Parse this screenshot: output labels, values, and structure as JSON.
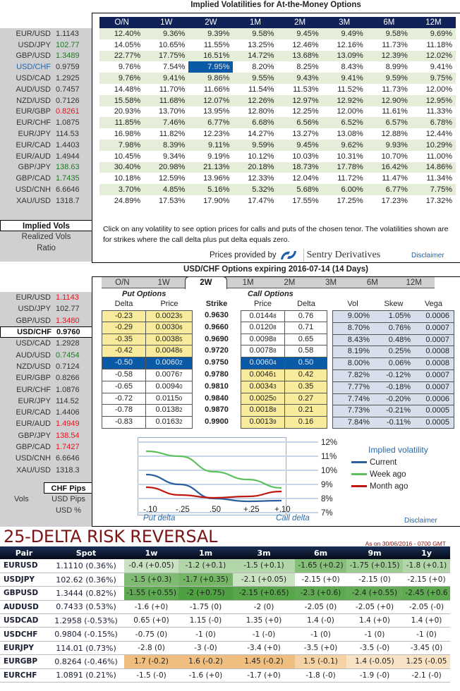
{
  "implied_vols": {
    "title": "Implied Volatilities for At-the-Money Options",
    "tenors": [
      "O/N",
      "1W",
      "2W",
      "1M",
      "2M",
      "3M",
      "6M",
      "12M"
    ],
    "pairs": [
      {
        "pair": "EUR/USD",
        "spot": "1.1143",
        "color": "",
        "vols": [
          "12.40%",
          "9.36%",
          "9.39%",
          "9.58%",
          "9.45%",
          "9.49%",
          "9.58%",
          "9.69%"
        ]
      },
      {
        "pair": "USD/JPY",
        "spot": "102.77",
        "color": "green",
        "vols": [
          "14.05%",
          "10.65%",
          "11.55%",
          "13.25%",
          "12.46%",
          "12.16%",
          "11.73%",
          "11.18%"
        ]
      },
      {
        "pair": "GBP/USD",
        "spot": "1.3489",
        "color": "green",
        "vols": [
          "22.77%",
          "17.75%",
          "16.51%",
          "14.72%",
          "13.68%",
          "13.09%",
          "12.39%",
          "12.02%"
        ]
      },
      {
        "pair": "USD/CHF",
        "spot": "0.9759",
        "color": "",
        "selected": true,
        "vols": [
          "9.76%",
          "7.54%",
          "7.95%",
          "8.20%",
          "8.25%",
          "8.43%",
          "8.99%",
          "9.41%"
        ]
      },
      {
        "pair": "USD/CAD",
        "spot": "1.2925",
        "color": "",
        "vols": [
          "9.76%",
          "9.41%",
          "9.86%",
          "9.55%",
          "9.43%",
          "9.41%",
          "9.59%",
          "9.75%"
        ]
      },
      {
        "pair": "AUD/USD",
        "spot": "0.7457",
        "color": "",
        "vols": [
          "14.48%",
          "11.70%",
          "11.66%",
          "11.54%",
          "11.53%",
          "11.52%",
          "11.73%",
          "12.00%"
        ]
      },
      {
        "pair": "NZD/USD",
        "spot": "0.7126",
        "color": "",
        "vols": [
          "15.58%",
          "11.68%",
          "12.07%",
          "12.26%",
          "12.97%",
          "12.92%",
          "12.90%",
          "12.95%"
        ]
      },
      {
        "pair": "EUR/GBP",
        "spot": "0.8261",
        "color": "red",
        "vols": [
          "20.93%",
          "13.70%",
          "13.95%",
          "12.80%",
          "12.25%",
          "12.00%",
          "11.61%",
          "11.33%"
        ]
      },
      {
        "pair": "EUR/CHF",
        "spot": "1.0875",
        "color": "",
        "vols": [
          "11.85%",
          "7.46%",
          "6.77%",
          "6.68%",
          "6.56%",
          "6.52%",
          "6.57%",
          "6.78%"
        ]
      },
      {
        "pair": "EUR/JPY",
        "spot": "114.53",
        "color": "",
        "vols": [
          "16.98%",
          "11.82%",
          "12.23%",
          "14.27%",
          "13.27%",
          "13.08%",
          "12.88%",
          "12.44%"
        ]
      },
      {
        "pair": "EUR/CAD",
        "spot": "1.4403",
        "color": "",
        "vols": [
          "7.98%",
          "8.39%",
          "9.11%",
          "9.59%",
          "9.45%",
          "9.62%",
          "9.93%",
          "10.29%"
        ]
      },
      {
        "pair": "EUR/AUD",
        "spot": "1.4944",
        "color": "",
        "vols": [
          "10.45%",
          "9.34%",
          "9.19%",
          "10.12%",
          "10.03%",
          "10.31%",
          "10.70%",
          "11.00%"
        ]
      },
      {
        "pair": "GBP/JPY",
        "spot": "138.63",
        "color": "green",
        "vols": [
          "30.40%",
          "20.98%",
          "21.13%",
          "20.18%",
          "18.73%",
          "17.78%",
          "16.42%",
          "14.86%"
        ]
      },
      {
        "pair": "GBP/CAD",
        "spot": "1.7435",
        "color": "green",
        "vols": [
          "10.18%",
          "12.59%",
          "13.96%",
          "12.33%",
          "12.04%",
          "11.72%",
          "11.47%",
          "11.34%"
        ]
      },
      {
        "pair": "USD/CNH",
        "spot": "6.6646",
        "color": "",
        "vols": [
          "3.70%",
          "4.85%",
          "5.16%",
          "5.32%",
          "5.68%",
          "6.00%",
          "6.77%",
          "7.75%"
        ]
      },
      {
        "pair": "XAU/USD",
        "spot": "1318.7",
        "color": "",
        "vols": [
          "24.89%",
          "17.53%",
          "17.90%",
          "17.47%",
          "17.55%",
          "17.25%",
          "17.23%",
          "17.32%"
        ]
      }
    ],
    "selected_cell": {
      "pair": "USD/CHF",
      "tenor": "2W"
    },
    "modes": [
      "Implied Vols",
      "Realized Vols",
      "Ratio"
    ],
    "active_mode": "Implied Vols",
    "note": "Click on any volatility to see option prices for calls and puts of the chosen tenor. The volatilities shown are for strikes where the call delta plus put delta equals zero.",
    "prices_by": "Prices provided by",
    "provider": "Sentry Derivatives",
    "disclaimer": "Disclaimer"
  },
  "options": {
    "title": "USD/CHF Options expiring 2016-07-14 (14 Days)",
    "tabs": [
      "O/N",
      "1W",
      "2W",
      "1M",
      "2M",
      "3M",
      "6M",
      "12M"
    ],
    "active_tab": "2W",
    "put_header": "Put Options",
    "call_header": "Call Options",
    "columns": {
      "put_delta": "Delta",
      "put_price": "Price",
      "strike": "Strike",
      "call_price": "Price",
      "call_delta": "Delta",
      "vol": "Vol",
      "skew": "Skew",
      "vega": "Vega"
    },
    "rows": [
      {
        "put_delta": "-0.23",
        "put_price": "0.0023",
        "put_price_sub": "5",
        "strike": "0.9630",
        "call_price": "0.0144",
        "call_price_sub": "8",
        "call_delta": "0.76",
        "vol": "9.00%",
        "skew": "1.05%",
        "vega": "0.0006"
      },
      {
        "put_delta": "-0.29",
        "put_price": "0.0030",
        "put_price_sub": "6",
        "strike": "0.9660",
        "call_price": "0.0120",
        "call_price_sub": "8",
        "call_delta": "0.71",
        "vol": "8.70%",
        "skew": "0.76%",
        "vega": "0.0007"
      },
      {
        "put_delta": "-0.35",
        "put_price": "0.0038",
        "put_price_sub": "5",
        "strike": "0.9690",
        "call_price": "0.0098",
        "call_price_sub": "8",
        "call_delta": "0.65",
        "vol": "8.43%",
        "skew": "0.48%",
        "vega": "0.0007"
      },
      {
        "put_delta": "-0.42",
        "put_price": "0.0048",
        "put_price_sub": "6",
        "strike": "0.9720",
        "call_price": "0.0078",
        "call_price_sub": "8",
        "call_delta": "0.58",
        "vol": "8.19%",
        "skew": "0.25%",
        "vega": "0.0008"
      },
      {
        "put_delta": "-0.50",
        "put_price": "0.0060",
        "put_price_sub": "2",
        "strike": "0.9750",
        "call_price": "0.0060",
        "call_price_sub": "4",
        "call_delta": "0.50",
        "vol": "8.00%",
        "skew": "0.06%",
        "vega": "0.0008"
      },
      {
        "put_delta": "-0.58",
        "put_price": "0.0076",
        "put_price_sub": "7",
        "strike": "0.9780",
        "call_price": "0.0046",
        "call_price_sub": "1",
        "call_delta": "0.42",
        "vol": "7.82%",
        "skew": "-0.12%",
        "vega": "0.0007"
      },
      {
        "put_delta": "-0.65",
        "put_price": "0.0094",
        "put_price_sub": "0",
        "strike": "0.9810",
        "call_price": "0.0034",
        "call_price_sub": "3",
        "call_delta": "0.35",
        "vol": "7.77%",
        "skew": "-0.18%",
        "vega": "0.0007"
      },
      {
        "put_delta": "-0.72",
        "put_price": "0.0115",
        "put_price_sub": "0",
        "strike": "0.9840",
        "call_price": "0.0025",
        "call_price_sub": "0",
        "call_delta": "0.27",
        "vol": "7.74%",
        "skew": "-0.20%",
        "vega": "0.0006"
      },
      {
        "put_delta": "-0.78",
        "put_price": "0.0138",
        "put_price_sub": "2",
        "strike": "0.9870",
        "call_price": "0.0018",
        "call_price_sub": "8",
        "call_delta": "0.21",
        "vol": "7.73%",
        "skew": "-0.21%",
        "vega": "0.0005"
      },
      {
        "put_delta": "-0.83",
        "put_price": "0.0163",
        "put_price_sub": "2",
        "strike": "0.9900",
        "call_price": "0.0013",
        "call_price_sub": "9",
        "call_delta": "0.16",
        "vol": "7.84%",
        "skew": "-0.11%",
        "vega": "0.0005"
      }
    ],
    "pairs": [
      {
        "pair": "EUR/USD",
        "spot": "1.1143",
        "color": "red"
      },
      {
        "pair": "USD/JPY",
        "spot": "102.77",
        "color": ""
      },
      {
        "pair": "GBP/USD",
        "spot": "1.3480",
        "color": "red"
      },
      {
        "pair": "USD/CHF",
        "spot": "0.9760",
        "color": "",
        "active": true
      },
      {
        "pair": "USD/CAD",
        "spot": "1.2928",
        "color": ""
      },
      {
        "pair": "AUD/USD",
        "spot": "0.7454",
        "color": "green"
      },
      {
        "pair": "NZD/USD",
        "spot": "0.7124",
        "color": ""
      },
      {
        "pair": "EUR/GBP",
        "spot": "0.8266",
        "color": ""
      },
      {
        "pair": "EUR/CHF",
        "spot": "1.0876",
        "color": ""
      },
      {
        "pair": "EUR/JPY",
        "spot": "114.52",
        "color": ""
      },
      {
        "pair": "EUR/CAD",
        "spot": "1.4406",
        "color": ""
      },
      {
        "pair": "EUR/AUD",
        "spot": "1.4949",
        "color": "red"
      },
      {
        "pair": "GBP/JPY",
        "spot": "138.54",
        "color": "red"
      },
      {
        "pair": "GBP/CAD",
        "spot": "1.7427",
        "color": "red"
      },
      {
        "pair": "USD/CNH",
        "spot": "6.6646",
        "color": ""
      },
      {
        "pair": "XAU/USD",
        "spot": "1318.3",
        "color": ""
      }
    ],
    "units": [
      "CHF Pips",
      "USD Pips",
      "USD %"
    ],
    "active_unit": "CHF Pips",
    "vols_label": "Vols",
    "disclaimer": "Disclaimer"
  },
  "chart_data": {
    "type": "line",
    "title": "Implied volatility",
    "x": [
      "-.10",
      "-.25",
      ".50",
      "+.25",
      "+.10"
    ],
    "xlabel_left": "Put delta",
    "xlabel_right": "Call delta",
    "yticks": [
      "12%",
      "11%",
      "10%",
      "9%",
      "8%",
      "7%"
    ],
    "ylim": [
      7,
      12
    ],
    "series": [
      {
        "name": "Current",
        "color": "#2b5f9e",
        "values": [
          9.7,
          9.0,
          8.0,
          7.8,
          7.85
        ]
      },
      {
        "name": "Week ago",
        "color": "#5cc05c",
        "values": [
          11.35,
          11.0,
          9.9,
          9.35,
          8.75
        ]
      },
      {
        "name": "Month ago",
        "color": "#c0180e",
        "values": [
          8.8,
          8.25,
          8.05,
          8.15,
          8.5
        ]
      }
    ],
    "legend": "right"
  },
  "risk_reversal": {
    "title": "25-DELTA RISK REVERSAL",
    "as_of": "As on 30/06/2016 - 0700 GMT",
    "headers": [
      "Pair",
      "Spot",
      "1w",
      "1m",
      "3m",
      "6m",
      "9m",
      "1y"
    ],
    "rows": [
      {
        "pair": "EURUSD",
        "spot": "1.1110 (0.36%)",
        "values": [
          "-0.4 (+0.05)",
          "-1.2 (+0.1)",
          "-1.5 (+0.1)",
          "-1.65 (+0.2)",
          "-1.75 (+0.15)",
          "-1.8 (+0.1)"
        ],
        "shades": [
          "#c9e2c2",
          "#b2d6a9",
          "#b2d6a9",
          "#86bf79",
          "#9ccb91",
          "#b2d6a9"
        ]
      },
      {
        "pair": "USDJPY",
        "spot": "102.62 (0.36%)",
        "values": [
          "-1.5 (+0.3)",
          "-1.7 (+0.35)",
          "-2.1 (+0.05)",
          "-2.15 (+0)",
          "-2.15 (0)",
          "-2.15 (+0)"
        ],
        "shades": [
          "#7fbb72",
          "#74b566",
          "#c9e2c2",
          "#ffffff",
          "#ffffff",
          "#ffffff"
        ]
      },
      {
        "pair": "GBPUSD",
        "spot": "1.3444 (0.82%)",
        "values": [
          "-1.55 (+0.55)",
          "-2 (+0.75)",
          "-2.15 (+0.65)",
          "-2.3 (+0.6)",
          "-2.4 (+0.55)",
          "-2.45 (+0.6"
        ],
        "shades": [
          "#5fa952",
          "#4f9f43",
          "#58a54b",
          "#5fa952",
          "#64ac57",
          "#5fa952"
        ]
      },
      {
        "pair": "AUDUSD",
        "spot": "0.7433 (0.53%)",
        "values": [
          "-1.6 (+0)",
          "-1.75 (0)",
          "-2 (0)",
          "-2.05 (0)",
          "-2.05 (+0)",
          "-2.05 (-0)"
        ],
        "shades": [
          "#ffffff",
          "#ffffff",
          "#ffffff",
          "#ffffff",
          "#ffffff",
          "#ffffff"
        ]
      },
      {
        "pair": "USDCAD",
        "spot": "1.2958 (-0.53%)",
        "values": [
          "0.65 (+0)",
          "1.15 (-0)",
          "1.35 (+0)",
          "1.4 (-0)",
          "1.4 (+0)",
          "1.4 (+0)"
        ],
        "shades": [
          "#ffffff",
          "#ffffff",
          "#ffffff",
          "#ffffff",
          "#ffffff",
          "#ffffff"
        ]
      },
      {
        "pair": "USDCHF",
        "spot": "0.9804 (-0.15%)",
        "values": [
          "-0.75 (0)",
          "-1 (0)",
          "-1 (-0)",
          "-1 (0)",
          "-1 (0)",
          "-1 (0)"
        ],
        "shades": [
          "#ffffff",
          "#ffffff",
          "#ffffff",
          "#ffffff",
          "#ffffff",
          "#ffffff"
        ]
      },
      {
        "pair": "EURJPY",
        "spot": "114.01 (0.73%)",
        "values": [
          "-2.8 (0)",
          "-3 (-0)",
          "-3.4 (+0)",
          "-3.5 (+0)",
          "-3.5 (-0)",
          "-3.45 (0)"
        ],
        "shades": [
          "#ffffff",
          "#ffffff",
          "#ffffff",
          "#ffffff",
          "#ffffff",
          "#ffffff"
        ]
      },
      {
        "pair": "EURGBP",
        "spot": "0.8264 (-0.46%)",
        "values": [
          "1.7 (-0.2)",
          "1.6 (-0.2)",
          "1.45 (-0.2)",
          "1.5 (-0.1)",
          "1.4 (-0.05)",
          "1.25 (-0.05"
        ],
        "shades": [
          "#f0bf80",
          "#f0bf80",
          "#f0bf80",
          "#f5d3a7",
          "#f9e3c6",
          "#f9e3c6"
        ]
      },
      {
        "pair": "EURCHF",
        "spot": "1.0891 (0.21%)",
        "values": [
          "-1.5 (-0)",
          "-1.6 (+0)",
          "-1.7 (+0)",
          "-1.8 (-0)",
          "-1.9 (-0)",
          "-2.1 (-0)"
        ],
        "shades": [
          "#ffffff",
          "#ffffff",
          "#ffffff",
          "#ffffff",
          "#ffffff",
          "#ffffff"
        ]
      }
    ]
  }
}
